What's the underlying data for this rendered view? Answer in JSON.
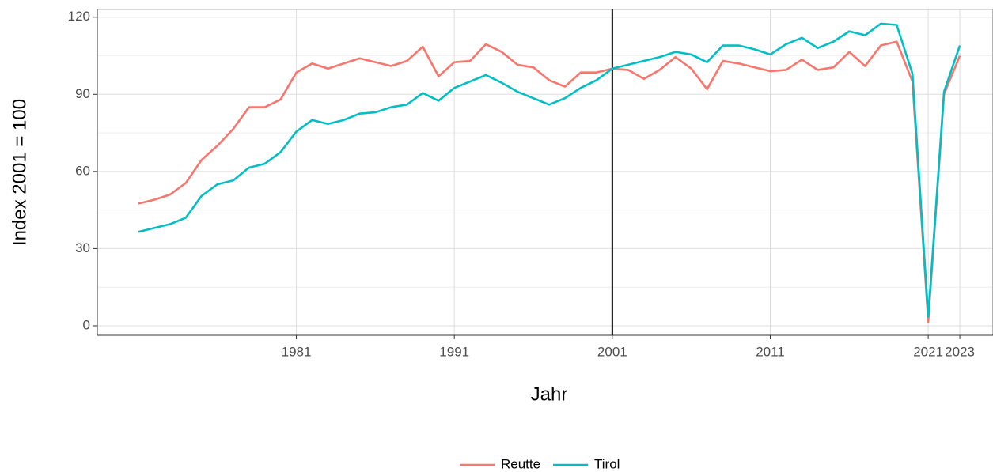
{
  "chart_data": {
    "type": "line",
    "xlabel": "Jahr",
    "ylabel": "Index 2001 = 100",
    "x": [
      1971,
      1972,
      1973,
      1974,
      1975,
      1976,
      1977,
      1978,
      1979,
      1980,
      1981,
      1982,
      1983,
      1984,
      1985,
      1986,
      1987,
      1988,
      1989,
      1990,
      1991,
      1992,
      1993,
      1994,
      1995,
      1996,
      1997,
      1998,
      1999,
      2000,
      2001,
      2002,
      2003,
      2004,
      2005,
      2006,
      2007,
      2008,
      2009,
      2010,
      2011,
      2012,
      2013,
      2014,
      2015,
      2016,
      2017,
      2018,
      2019,
      2020,
      2021,
      2022,
      2023
    ],
    "series": [
      {
        "name": "Reutte",
        "color": "#F8766D",
        "values": [
          47.5,
          49,
          51,
          55.5,
          64.5,
          70,
          76.5,
          85,
          85,
          88,
          98.5,
          102,
          100,
          102,
          104,
          102.5,
          101,
          103,
          108.5,
          97,
          102.5,
          103,
          109.5,
          106.5,
          101.5,
          100.5,
          95.5,
          93,
          98.5,
          98.5,
          100,
          99.5,
          96,
          99.5,
          104.5,
          100,
          92,
          103,
          102,
          100.5,
          99,
          99.5,
          103.5,
          99.5,
          100.5,
          106.5,
          101,
          109,
          110.5,
          95,
          1.5,
          90,
          105
        ]
      },
      {
        "name": "Tirol",
        "color": "#00BFC4",
        "values": [
          36.5,
          38,
          39.5,
          42,
          50.5,
          55,
          56.5,
          61.5,
          63,
          67.5,
          75.5,
          80,
          78.5,
          80,
          82.5,
          83,
          85,
          86,
          90.5,
          87.5,
          92.5,
          95,
          97.5,
          94.5,
          91,
          88.5,
          86,
          88.5,
          92.5,
          95.5,
          100,
          101.5,
          103,
          104.5,
          106.5,
          105.5,
          102.5,
          109,
          109,
          107.5,
          105.5,
          109.5,
          112,
          108,
          110.5,
          114.5,
          113,
          117.5,
          117,
          98,
          3.5,
          91,
          109
        ]
      }
    ],
    "xlim": [
      1968.4,
      2025.1
    ],
    "xticks": [
      1981,
      1991,
      2001,
      2011,
      2021,
      2023
    ],
    "ylim": [
      -3.7,
      123
    ],
    "yticks": [
      0,
      30,
      60,
      90,
      120
    ],
    "vline": 2001,
    "grid": true,
    "legend": "bottom"
  }
}
